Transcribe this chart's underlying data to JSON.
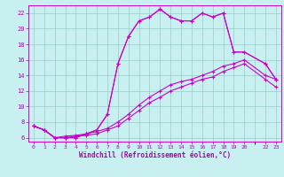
{
  "xlabel": "Windchill (Refroidissement éolien,°C)",
  "ylabel": "",
  "bg_color": "#c8f0f0",
  "line_color": "#cc00cc",
  "grid_color": "#99cccc",
  "axis_color": "#cc00cc",
  "tick_color": "#aa00aa",
  "xlim": [
    -0.5,
    23.5
  ],
  "ylim": [
    5.5,
    23.0
  ],
  "xticks": [
    0,
    1,
    2,
    3,
    4,
    5,
    6,
    7,
    8,
    9,
    10,
    11,
    12,
    13,
    14,
    15,
    16,
    17,
    18,
    19,
    20,
    22,
    23
  ],
  "yticks": [
    6,
    8,
    10,
    12,
    14,
    16,
    18,
    20,
    22
  ],
  "line1_x": [
    0,
    1,
    2,
    3,
    4,
    5,
    6,
    7,
    8,
    9,
    10,
    11,
    12,
    13,
    14,
    15,
    16,
    17,
    18,
    19,
    20,
    22,
    23
  ],
  "line1_y": [
    7.5,
    7.0,
    6.0,
    6.0,
    6.0,
    6.5,
    7.0,
    9.0,
    15.5,
    19.0,
    21.0,
    21.5,
    22.5,
    21.5,
    21.0,
    21.0,
    22.0,
    21.5,
    22.0,
    17.0,
    17.0,
    15.5,
    13.5
  ],
  "line2_x": [
    0,
    1,
    2,
    3,
    4,
    5,
    6,
    7,
    8,
    9,
    10,
    11,
    12,
    13,
    14,
    15,
    16,
    17,
    18,
    19,
    20,
    22,
    23
  ],
  "line2_y": [
    7.5,
    7.0,
    6.0,
    6.2,
    6.3,
    6.5,
    6.8,
    7.2,
    8.0,
    9.0,
    10.2,
    11.2,
    12.0,
    12.8,
    13.2,
    13.5,
    14.0,
    14.5,
    15.2,
    15.5,
    16.0,
    14.0,
    13.5
  ],
  "line3_x": [
    0,
    1,
    2,
    3,
    4,
    5,
    6,
    7,
    8,
    9,
    10,
    11,
    12,
    13,
    14,
    15,
    16,
    17,
    18,
    19,
    20,
    22,
    23
  ],
  "line3_y": [
    7.5,
    7.0,
    6.0,
    6.0,
    6.2,
    6.3,
    6.5,
    7.0,
    7.5,
    8.5,
    9.5,
    10.5,
    11.2,
    12.0,
    12.5,
    13.0,
    13.5,
    13.8,
    14.5,
    15.0,
    15.5,
    13.5,
    12.5
  ],
  "line4_x": [
    0,
    1,
    2,
    3,
    4,
    5,
    6,
    7,
    8,
    9,
    10,
    11,
    12,
    13,
    14,
    15,
    16,
    17,
    18,
    19,
    20,
    22,
    23
  ],
  "line4_y": [
    7.5,
    7.0,
    6.0,
    6.0,
    6.0,
    6.5,
    7.0,
    9.0,
    15.5,
    19.0,
    21.0,
    21.5,
    22.5,
    21.5,
    21.0,
    21.0,
    22.0,
    21.5,
    22.0,
    17.0,
    17.0,
    15.5,
    13.5
  ]
}
